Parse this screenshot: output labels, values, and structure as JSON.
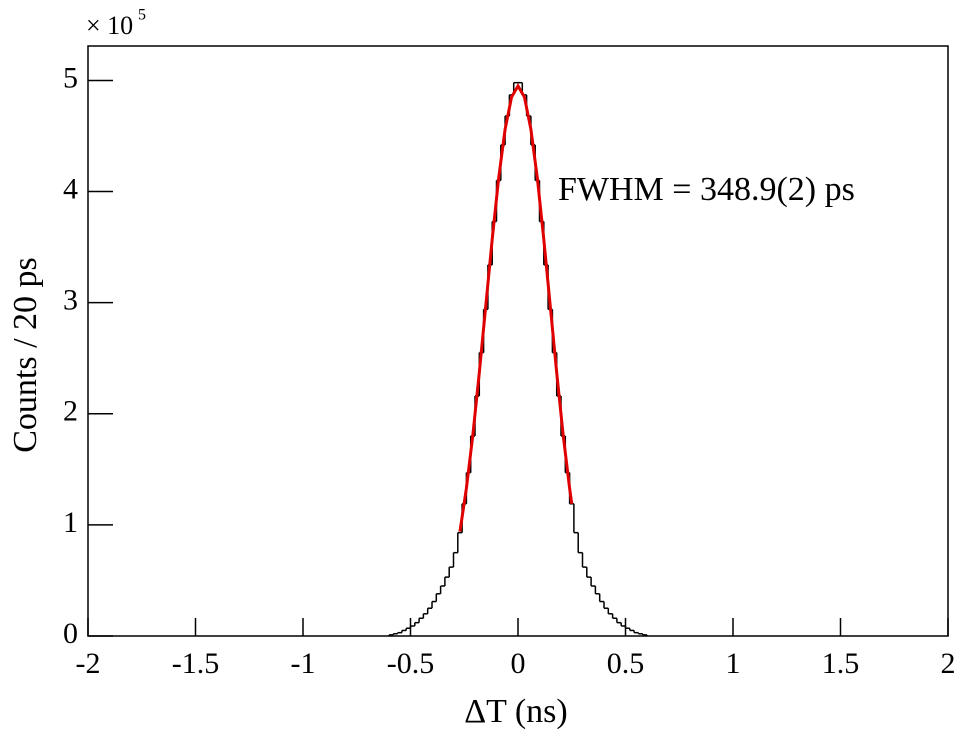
{
  "chart_data": {
    "type": "histogram",
    "x_label": "ΔT (ns)",
    "y_label": "Counts / 20 ps",
    "y_multiplier": {
      "base": "× 10",
      "exponent": "5"
    },
    "annotation": "FWHM = 348.9(2) ps",
    "xlim": [
      -2,
      2
    ],
    "ylim": [
      0,
      5.31
    ],
    "xticks": [
      -2,
      -1.5,
      -1,
      -0.5,
      0,
      0.5,
      1,
      1.5,
      2
    ],
    "yticks": [
      0,
      1,
      2,
      3,
      4,
      5
    ],
    "color": "#000000",
    "bins": [
      -0.6,
      -0.58,
      -0.56,
      -0.54,
      -0.52,
      -0.5,
      -0.48,
      -0.46,
      -0.44,
      -0.42,
      -0.4,
      -0.38,
      -0.36,
      -0.34,
      -0.32,
      -0.3,
      -0.28,
      -0.26,
      -0.24,
      -0.22,
      -0.2,
      -0.18,
      -0.16,
      -0.14,
      -0.12,
      -0.1,
      -0.08,
      -0.06,
      -0.04,
      -0.02,
      0,
      0.02,
      0.04,
      0.06,
      0.08,
      0.1,
      0.12,
      0.14,
      0.16,
      0.18,
      0.2,
      0.22,
      0.24,
      0.26,
      0.28,
      0.3,
      0.32,
      0.34,
      0.36,
      0.38,
      0.4,
      0.42,
      0.44,
      0.46,
      0.48,
      0.5,
      0.52,
      0.54,
      0.56,
      0.58,
      0.6
    ],
    "values": [
      0.01,
      0.02,
      0.03,
      0.05,
      0.07,
      0.09,
      0.12,
      0.16,
      0.2,
      0.25,
      0.31,
      0.38,
      0.45,
      0.53,
      0.62,
      0.75,
      0.93,
      1.19,
      1.47,
      1.8,
      2.16,
      2.55,
      2.94,
      3.34,
      3.73,
      4.1,
      4.42,
      4.68,
      4.87,
      4.98,
      4.98,
      4.87,
      4.68,
      4.42,
      4.1,
      3.73,
      3.34,
      2.94,
      2.55,
      2.16,
      1.8,
      1.47,
      1.19,
      0.93,
      0.75,
      0.62,
      0.53,
      0.45,
      0.38,
      0.31,
      0.25,
      0.2,
      0.16,
      0.12,
      0.09,
      0.07,
      0.05,
      0.03,
      0.02,
      0.01
    ],
    "fit": {
      "color": "#e00000",
      "x": [
        -0.27,
        -0.24,
        -0.21,
        -0.18,
        -0.15,
        -0.12,
        -0.09,
        -0.06,
        -0.03,
        0,
        0.03,
        0.06,
        0.09,
        0.12,
        0.15,
        0.18,
        0.21,
        0.24,
        0.25
      ],
      "values": [
        0.94,
        1.33,
        1.81,
        2.37,
        2.97,
        3.57,
        4.12,
        4.56,
        4.85,
        4.95,
        4.85,
        4.56,
        4.12,
        3.57,
        2.97,
        2.37,
        1.81,
        1.33,
        1.19
      ]
    }
  }
}
